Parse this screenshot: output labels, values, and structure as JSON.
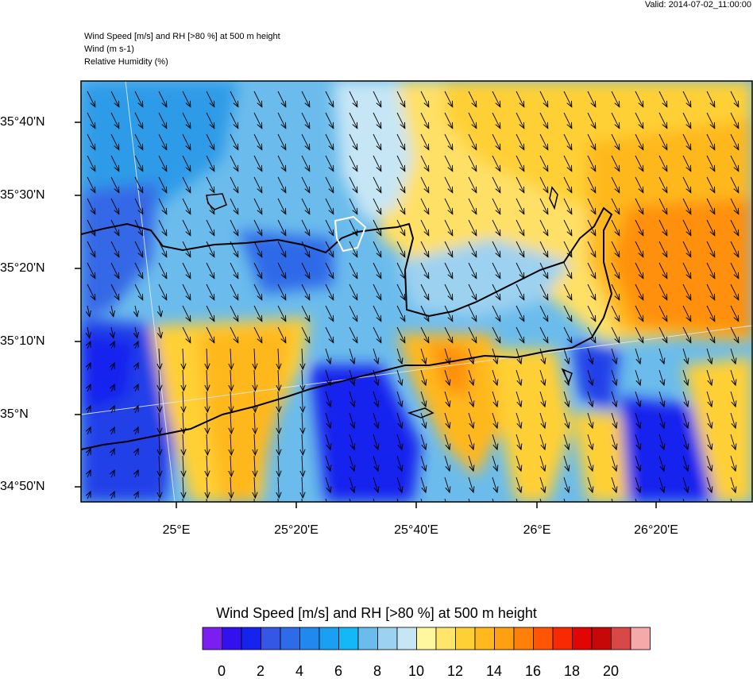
{
  "valid_time": "Valid: 2014-07-02_11:00:00",
  "header": {
    "line1": "Wind Speed [m/s] and RH [>80 %] at 500 m height",
    "line2": "Wind   (m s-1)",
    "line3": "Relative Humidity   (%)"
  },
  "axes": {
    "lat_labels": [
      "35°40'N",
      "35°30'N",
      "35°20'N",
      "35°10'N",
      "35°N",
      "34°50'N"
    ],
    "lon_labels": [
      "25°E",
      "25°20'E",
      "25°40'E",
      "26°E",
      "26°20'E"
    ]
  },
  "colorbar": {
    "title": "Wind Speed [m/s] and RH [>80 %] at 500 m height",
    "colors": [
      "#7b1ff0",
      "#3311ee",
      "#1622ee",
      "#3557e6",
      "#2d6be8",
      "#2088ee",
      "#1aa0f2",
      "#14b8f6",
      "#6bbcec",
      "#9cd1f0",
      "#c6e6f5",
      "#fff7a0",
      "#ffe66a",
      "#ffd035",
      "#ffb81e",
      "#ffa010",
      "#ff8008",
      "#ff5505",
      "#f82a04",
      "#e20505",
      "#c80808",
      "#d84848",
      "#f5aaaa"
    ],
    "labels": [
      "0",
      "2",
      "4",
      "6",
      "8",
      "10",
      "12",
      "14",
      "16",
      "18",
      "20"
    ]
  }
}
